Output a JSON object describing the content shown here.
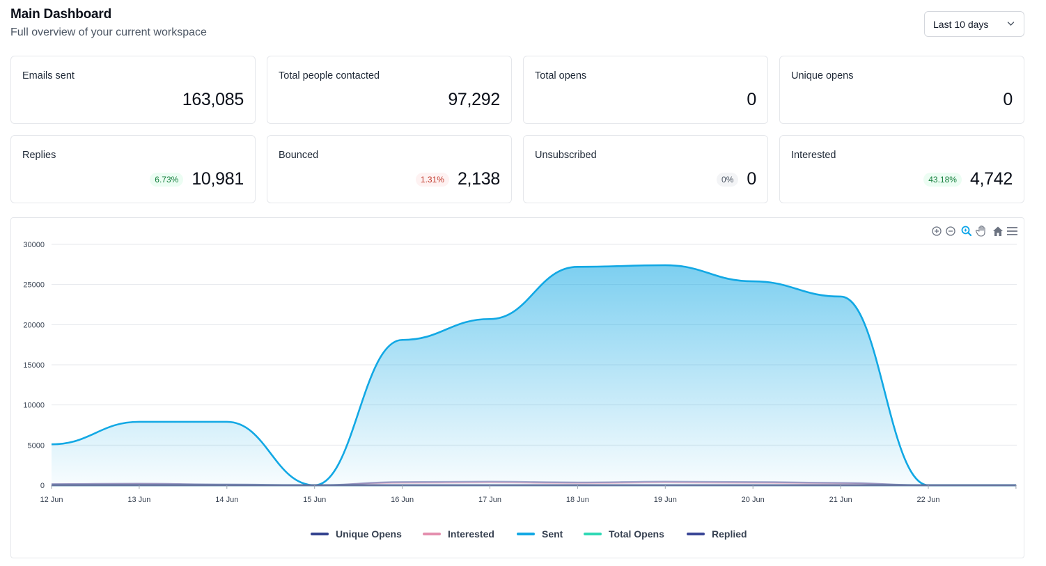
{
  "header": {
    "title": "Main Dashboard",
    "subtitle": "Full overview of your current workspace"
  },
  "range_select": {
    "selected": "Last 10 days",
    "icon": "chevron-down-icon"
  },
  "stats": [
    {
      "label": "Emails sent",
      "value": "163,085",
      "badge": null
    },
    {
      "label": "Total people contacted",
      "value": "97,292",
      "badge": null
    },
    {
      "label": "Total opens",
      "value": "0",
      "badge": null
    },
    {
      "label": "Unique opens",
      "value": "0",
      "badge": null
    },
    {
      "label": "Replies",
      "value": "10,981",
      "badge": {
        "text": "6.73%",
        "tone": "green"
      }
    },
    {
      "label": "Bounced",
      "value": "2,138",
      "badge": {
        "text": "1.31%",
        "tone": "red"
      }
    },
    {
      "label": "Unsubscribed",
      "value": "0",
      "badge": {
        "text": "0%",
        "tone": "gray"
      }
    },
    {
      "label": "Interested",
      "value": "4,742",
      "badge": {
        "text": "43.18%",
        "tone": "green"
      }
    }
  ],
  "chart_toolbar": [
    "zoom-in-icon",
    "zoom-out-icon",
    "selection-zoom-icon",
    "pan-hand-icon",
    "home-reset-icon",
    "menu-icon"
  ],
  "colors": {
    "sent": "#12a8e4",
    "unique_opens": "#33438f",
    "interested": "#e48fae",
    "total_opens": "#2fd9b5",
    "replied": "#3a4696"
  },
  "chart_data": {
    "type": "area",
    "x": [
      "12 Jun",
      "13 Jun",
      "14 Jun",
      "15 Jun",
      "16 Jun",
      "17 Jun",
      "18 Jun",
      "19 Jun",
      "20 Jun",
      "21 Jun",
      "22 Jun",
      ""
    ],
    "ylim": [
      0,
      30000
    ],
    "yticks": [
      0,
      5000,
      10000,
      15000,
      20000,
      25000,
      30000
    ],
    "grid": true,
    "legend_position": "bottom",
    "series": [
      {
        "name": "Unique Opens",
        "values": [
          0,
          0,
          0,
          0,
          0,
          0,
          0,
          0,
          0,
          0,
          0,
          0
        ]
      },
      {
        "name": "Interested",
        "values": [
          100,
          150,
          50,
          0,
          300,
          350,
          250,
          350,
          300,
          200,
          0,
          0
        ]
      },
      {
        "name": "Sent",
        "values": [
          5100,
          7900,
          7900,
          0,
          18100,
          20700,
          27200,
          27400,
          25400,
          23500,
          0,
          0
        ]
      },
      {
        "name": "Total Opens",
        "values": [
          0,
          0,
          0,
          0,
          0,
          0,
          0,
          0,
          0,
          0,
          0,
          0
        ]
      },
      {
        "name": "Replied",
        "values": [
          150,
          200,
          100,
          0,
          400,
          450,
          350,
          450,
          400,
          300,
          0,
          0
        ]
      }
    ]
  }
}
